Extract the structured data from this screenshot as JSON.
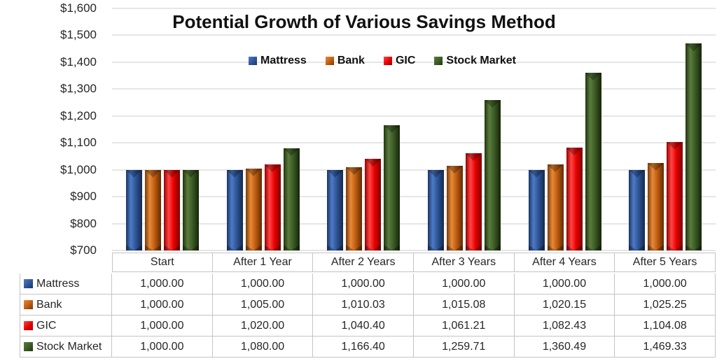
{
  "chart_data": {
    "type": "bar",
    "title": "Potential Growth of Various Savings Method",
    "categories": [
      "Start",
      "After 1 Year",
      "After 2 Years",
      "After 3 Years",
      "After 4 Years",
      "After 5 Years"
    ],
    "series": [
      {
        "name": "Mattress",
        "base": "#2e5596",
        "light": "#4d7bc7",
        "edge": "#1b3564",
        "shadow": "#16294e",
        "values": [
          1000.0,
          1000.0,
          1000.0,
          1000.0,
          1000.0,
          1000.0
        ],
        "display": [
          "1,000.00",
          "1,000.00",
          "1,000.00",
          "1,000.00",
          "1,000.00",
          "1,000.00"
        ]
      },
      {
        "name": "Bank",
        "base": "#c05c10",
        "light": "#e68a3a",
        "edge": "#7c3a06",
        "shadow": "#5f2c03",
        "values": [
          1000.0,
          1005.0,
          1010.03,
          1015.08,
          1020.15,
          1025.25
        ],
        "display": [
          "1,000.00",
          "1,005.00",
          "1,010.03",
          "1,015.08",
          "1,020.15",
          "1,025.25"
        ]
      },
      {
        "name": "GIC",
        "base": "#ea0000",
        "light": "#ff4545",
        "edge": "#970000",
        "shadow": "#7c0000",
        "values": [
          1000.0,
          1020.0,
          1040.4,
          1061.21,
          1082.43,
          1104.08
        ],
        "display": [
          "1,000.00",
          "1,020.00",
          "1,040.40",
          "1,061.21",
          "1,082.43",
          "1,104.08"
        ]
      },
      {
        "name": "Stock Market",
        "base": "#3b5c25",
        "light": "#5b7b3e",
        "edge": "#21360e",
        "shadow": "#16240a",
        "values": [
          1000.0,
          1080.0,
          1166.4,
          1259.71,
          1360.49,
          1469.33
        ],
        "display": [
          "1,000.00",
          "1,080.00",
          "1,166.40",
          "1,259.71",
          "1,360.49",
          "1,469.33"
        ]
      }
    ],
    "y_axis": {
      "min": 700,
      "max": 1600,
      "tick_step": 100,
      "ticks": [
        "$1,600",
        "$1,500",
        "$1,400",
        "$1,300",
        "$1,200",
        "$1,100",
        "$1,000",
        "$900",
        "$800",
        "$700"
      ]
    },
    "legend_position": "top-center",
    "gridlines": true,
    "gridline_color": "#e6e6e6",
    "table_border_color": "#c4c4c4"
  }
}
